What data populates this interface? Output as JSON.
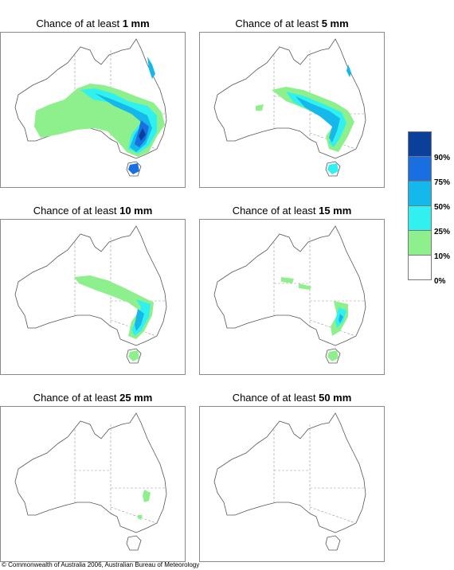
{
  "panels": [
    {
      "prefix": "Chance of at least ",
      "amount": "1 mm"
    },
    {
      "prefix": "Chance of at least ",
      "amount": "5 mm"
    },
    {
      "prefix": "Chance of at least ",
      "amount": "10 mm"
    },
    {
      "prefix": "Chance of at least ",
      "amount": "15 mm"
    },
    {
      "prefix": "Chance of at least ",
      "amount": "25 mm"
    },
    {
      "prefix": "Chance of at least ",
      "amount": "50 mm"
    }
  ],
  "legend": {
    "labels": [
      "90%",
      "75%",
      "50%",
      "25%",
      "10%",
      "0%"
    ],
    "colors": [
      "#0a3f9a",
      "#1a6fe0",
      "#14b8ea",
      "#30f0f0",
      "#8ef08c",
      "#ffffff"
    ]
  },
  "copyright": "© Commonwealth of Australia 2006, Australian Bureau of Meteorology"
}
